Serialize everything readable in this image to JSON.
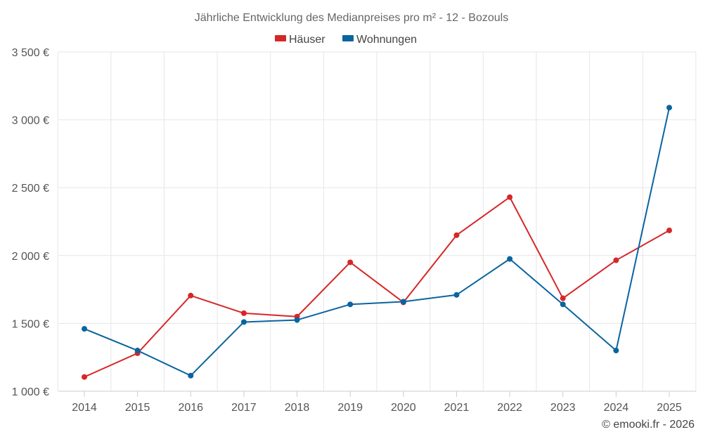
{
  "chart_data": {
    "type": "line",
    "title": "Jährliche Entwicklung des Medianpreises pro m² - 12 - Bozouls",
    "categories": [
      "2014",
      "2015",
      "2016",
      "2017",
      "2018",
      "2019",
      "2020",
      "2021",
      "2022",
      "2023",
      "2024",
      "2025"
    ],
    "series": [
      {
        "name": "Häuser",
        "color": "#d62728",
        "values": [
          1105,
          1280,
          1705,
          1575,
          1550,
          1950,
          1655,
          2150,
          2430,
          1685,
          1965,
          2185
        ]
      },
      {
        "name": "Wohnungen",
        "color": "#0a64a0",
        "values": [
          1460,
          1300,
          1115,
          1510,
          1525,
          1640,
          1660,
          1710,
          1975,
          1640,
          1300,
          3090
        ]
      }
    ],
    "ylim": [
      1000,
      3500
    ],
    "yticks": [
      1000,
      1500,
      2000,
      2500,
      3000,
      3500
    ],
    "ytick_labels": [
      "1 000 €",
      "1 500 €",
      "2 000 €",
      "2 500 €",
      "3 000 €",
      "3 500 €"
    ],
    "grid": true,
    "legend_position": "top-center",
    "credit": "© emooki.fr - 2026"
  }
}
